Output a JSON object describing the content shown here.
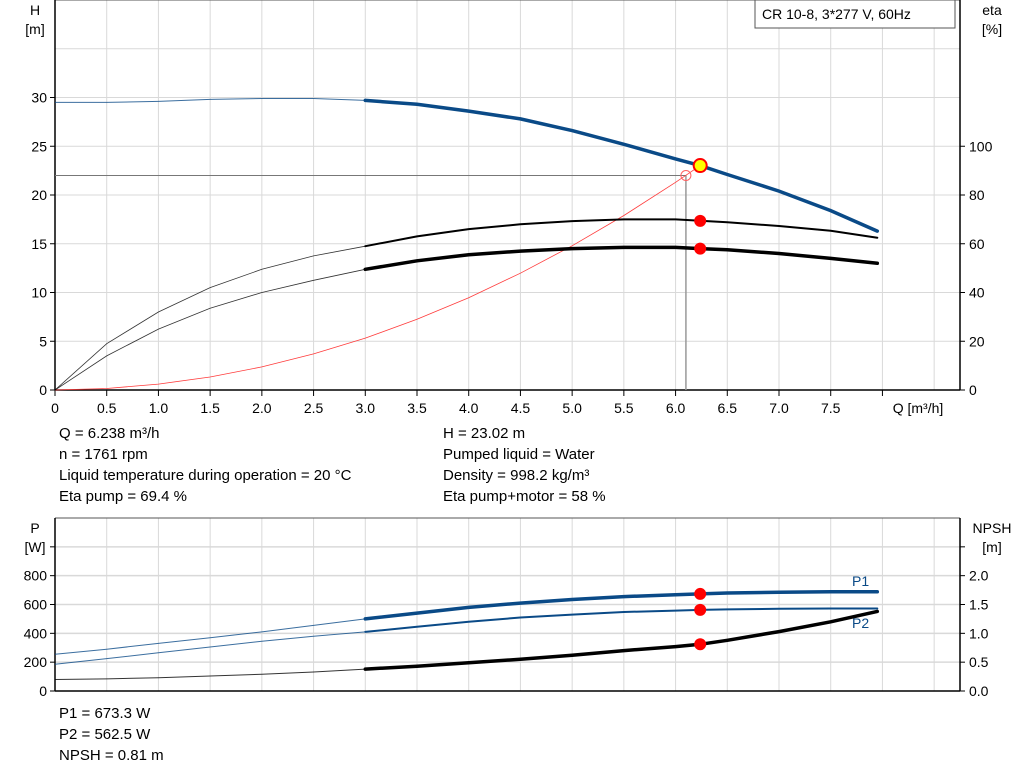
{
  "chart_data": [
    {
      "type": "line",
      "title": "CR 10-8, 3*277 V, 60Hz",
      "xlabel": "Q [m³/h]",
      "ylabel_left_name": "H",
      "ylabel_left_unit": "[m]",
      "ylabel_right_name": "eta",
      "ylabel_right_unit": "[%]",
      "xlim": [
        0,
        8.75
      ],
      "ylim_left": [
        0,
        40
      ],
      "ylim_right": [
        0,
        160
      ],
      "x_ticks": [
        "0",
        "0.5",
        "1.0",
        "1.5",
        "2.0",
        "2.5",
        "3.0",
        "3.5",
        "4.0",
        "4.5",
        "5.0",
        "5.5",
        "6.0",
        "6.5",
        "7.0",
        "7.5"
      ],
      "y_ticks_left": [
        "0",
        "5",
        "10",
        "15",
        "20",
        "25",
        "30"
      ],
      "y_ticks_right": [
        "0",
        "20",
        "40",
        "60",
        "80",
        "100"
      ],
      "grid": true,
      "series": [
        {
          "key": "H",
          "axis": "left",
          "color": "#0a4a87",
          "x": [
            0,
            0.5,
            1.0,
            1.5,
            2.0,
            2.5,
            3.0,
            3.5,
            4.0,
            4.5,
            5.0,
            5.5,
            6.0,
            6.238,
            6.5,
            7.0,
            7.5,
            7.95
          ],
          "y": [
            29.5,
            29.5,
            29.6,
            29.8,
            29.9,
            29.9,
            29.7,
            29.3,
            28.6,
            27.8,
            26.6,
            25.2,
            23.7,
            23.02,
            22.1,
            20.4,
            18.4,
            16.3
          ]
        },
        {
          "key": "eta_pump",
          "axis": "right",
          "color": "#000000",
          "x": [
            0,
            0.5,
            1.0,
            1.5,
            2.0,
            2.5,
            3.0,
            3.5,
            4.0,
            4.5,
            5.0,
            5.5,
            6.0,
            6.238,
            6.5,
            7.0,
            7.5,
            7.95
          ],
          "y": [
            0,
            19,
            32,
            42,
            49.5,
            55,
            59,
            63,
            66,
            68,
            69.3,
            70,
            70,
            69.4,
            68.8,
            67.3,
            65.3,
            62.5
          ]
        },
        {
          "key": "eta_pump_motor",
          "axis": "right",
          "color": "#000000",
          "x": [
            0,
            0.5,
            1.0,
            1.5,
            2.0,
            2.5,
            3.0,
            3.5,
            4.0,
            4.5,
            5.0,
            5.5,
            6.0,
            6.238,
            6.5,
            7.0,
            7.5,
            7.95
          ],
          "y": [
            0,
            14,
            25,
            33.5,
            40,
            45,
            49.5,
            53,
            55.5,
            57,
            58,
            58.5,
            58.5,
            58,
            57.5,
            56,
            54,
            52
          ]
        },
        {
          "key": "system",
          "axis": "left",
          "color": "#ff3b3b",
          "x": [
            0,
            0.5,
            1.0,
            1.5,
            2.0,
            2.5,
            3.0,
            3.5,
            4.0,
            4.5,
            5.0,
            5.5,
            6.0,
            6.238
          ],
          "y": [
            0,
            0.15,
            0.6,
            1.33,
            2.37,
            3.7,
            5.32,
            7.25,
            9.47,
            11.98,
            14.79,
            17.9,
            21.3,
            23.02
          ]
        }
      ],
      "duty_point": {
        "Q": 6.238,
        "H": 23.02,
        "eta_pump": 69.4,
        "eta_pump_motor": 58
      },
      "requested_point": {
        "Q": 6.1,
        "H": 22.0
      }
    },
    {
      "type": "line",
      "ylabel_left_name": "P",
      "ylabel_left_unit": "[W]",
      "ylabel_right_name": "NPSH",
      "ylabel_right_unit": "[m]",
      "xlim": [
        0,
        8.75
      ],
      "ylim_left": [
        0,
        1200
      ],
      "ylim_right": [
        0,
        3.0
      ],
      "y_ticks_left": [
        "0",
        "200",
        "400",
        "600",
        "800"
      ],
      "y_ticks_right": [
        "0.0",
        "0.5",
        "1.0",
        "1.5",
        "2.0"
      ],
      "grid": true,
      "series": [
        {
          "key": "P1",
          "name": "P1",
          "axis": "left",
          "color": "#0a4a87",
          "x": [
            0,
            0.5,
            1.0,
            1.5,
            2.0,
            2.5,
            3.0,
            3.5,
            4.0,
            4.5,
            5.0,
            5.5,
            6.0,
            6.238,
            6.5,
            7.0,
            7.5,
            7.95
          ],
          "y": [
            255,
            290,
            330,
            370,
            410,
            455,
            500,
            540,
            580,
            610,
            635,
            655,
            668,
            673.3,
            680,
            685,
            688,
            688
          ]
        },
        {
          "key": "P2",
          "name": "P2",
          "axis": "left",
          "color": "#0a4a87",
          "x": [
            0,
            0.5,
            1.0,
            1.5,
            2.0,
            2.5,
            3.0,
            3.5,
            4.0,
            4.5,
            5.0,
            5.5,
            6.0,
            6.238,
            6.5,
            7.0,
            7.5,
            7.95
          ],
          "y": [
            185,
            225,
            265,
            305,
            345,
            380,
            410,
            445,
            480,
            510,
            530,
            548,
            558,
            562.5,
            566,
            570,
            572,
            572
          ]
        },
        {
          "key": "NPSH",
          "axis": "right",
          "color": "#000000",
          "x": [
            0,
            0.5,
            1.0,
            1.5,
            2.0,
            2.5,
            3.0,
            3.5,
            4.0,
            4.5,
            5.0,
            5.5,
            6.0,
            6.238,
            6.5,
            7.0,
            7.5,
            7.95
          ],
          "y": [
            0.2,
            0.21,
            0.23,
            0.26,
            0.29,
            0.33,
            0.38,
            0.43,
            0.49,
            0.55,
            0.62,
            0.7,
            0.77,
            0.81,
            0.88,
            1.03,
            1.2,
            1.38
          ]
        }
      ]
    }
  ],
  "info_top": {
    "left": [
      "Q = 6.238 m³/h",
      "n = 1761 rpm",
      "Liquid temperature during operation = 20 °C",
      "Eta pump = 69.4 %"
    ],
    "right": [
      "H = 23.02 m",
      "Pumped liquid = Water",
      "Density = 998.2 kg/m³",
      "Eta pump+motor = 58 %"
    ]
  },
  "info_bottom": [
    "P1 = 673.3 W",
    "P2 = 562.5 W",
    "NPSH = 0.81 m"
  ],
  "colors": {
    "grid": "#d9d9d9",
    "duty_fill": "#ffff00",
    "duty_marker": "#ff0000"
  }
}
